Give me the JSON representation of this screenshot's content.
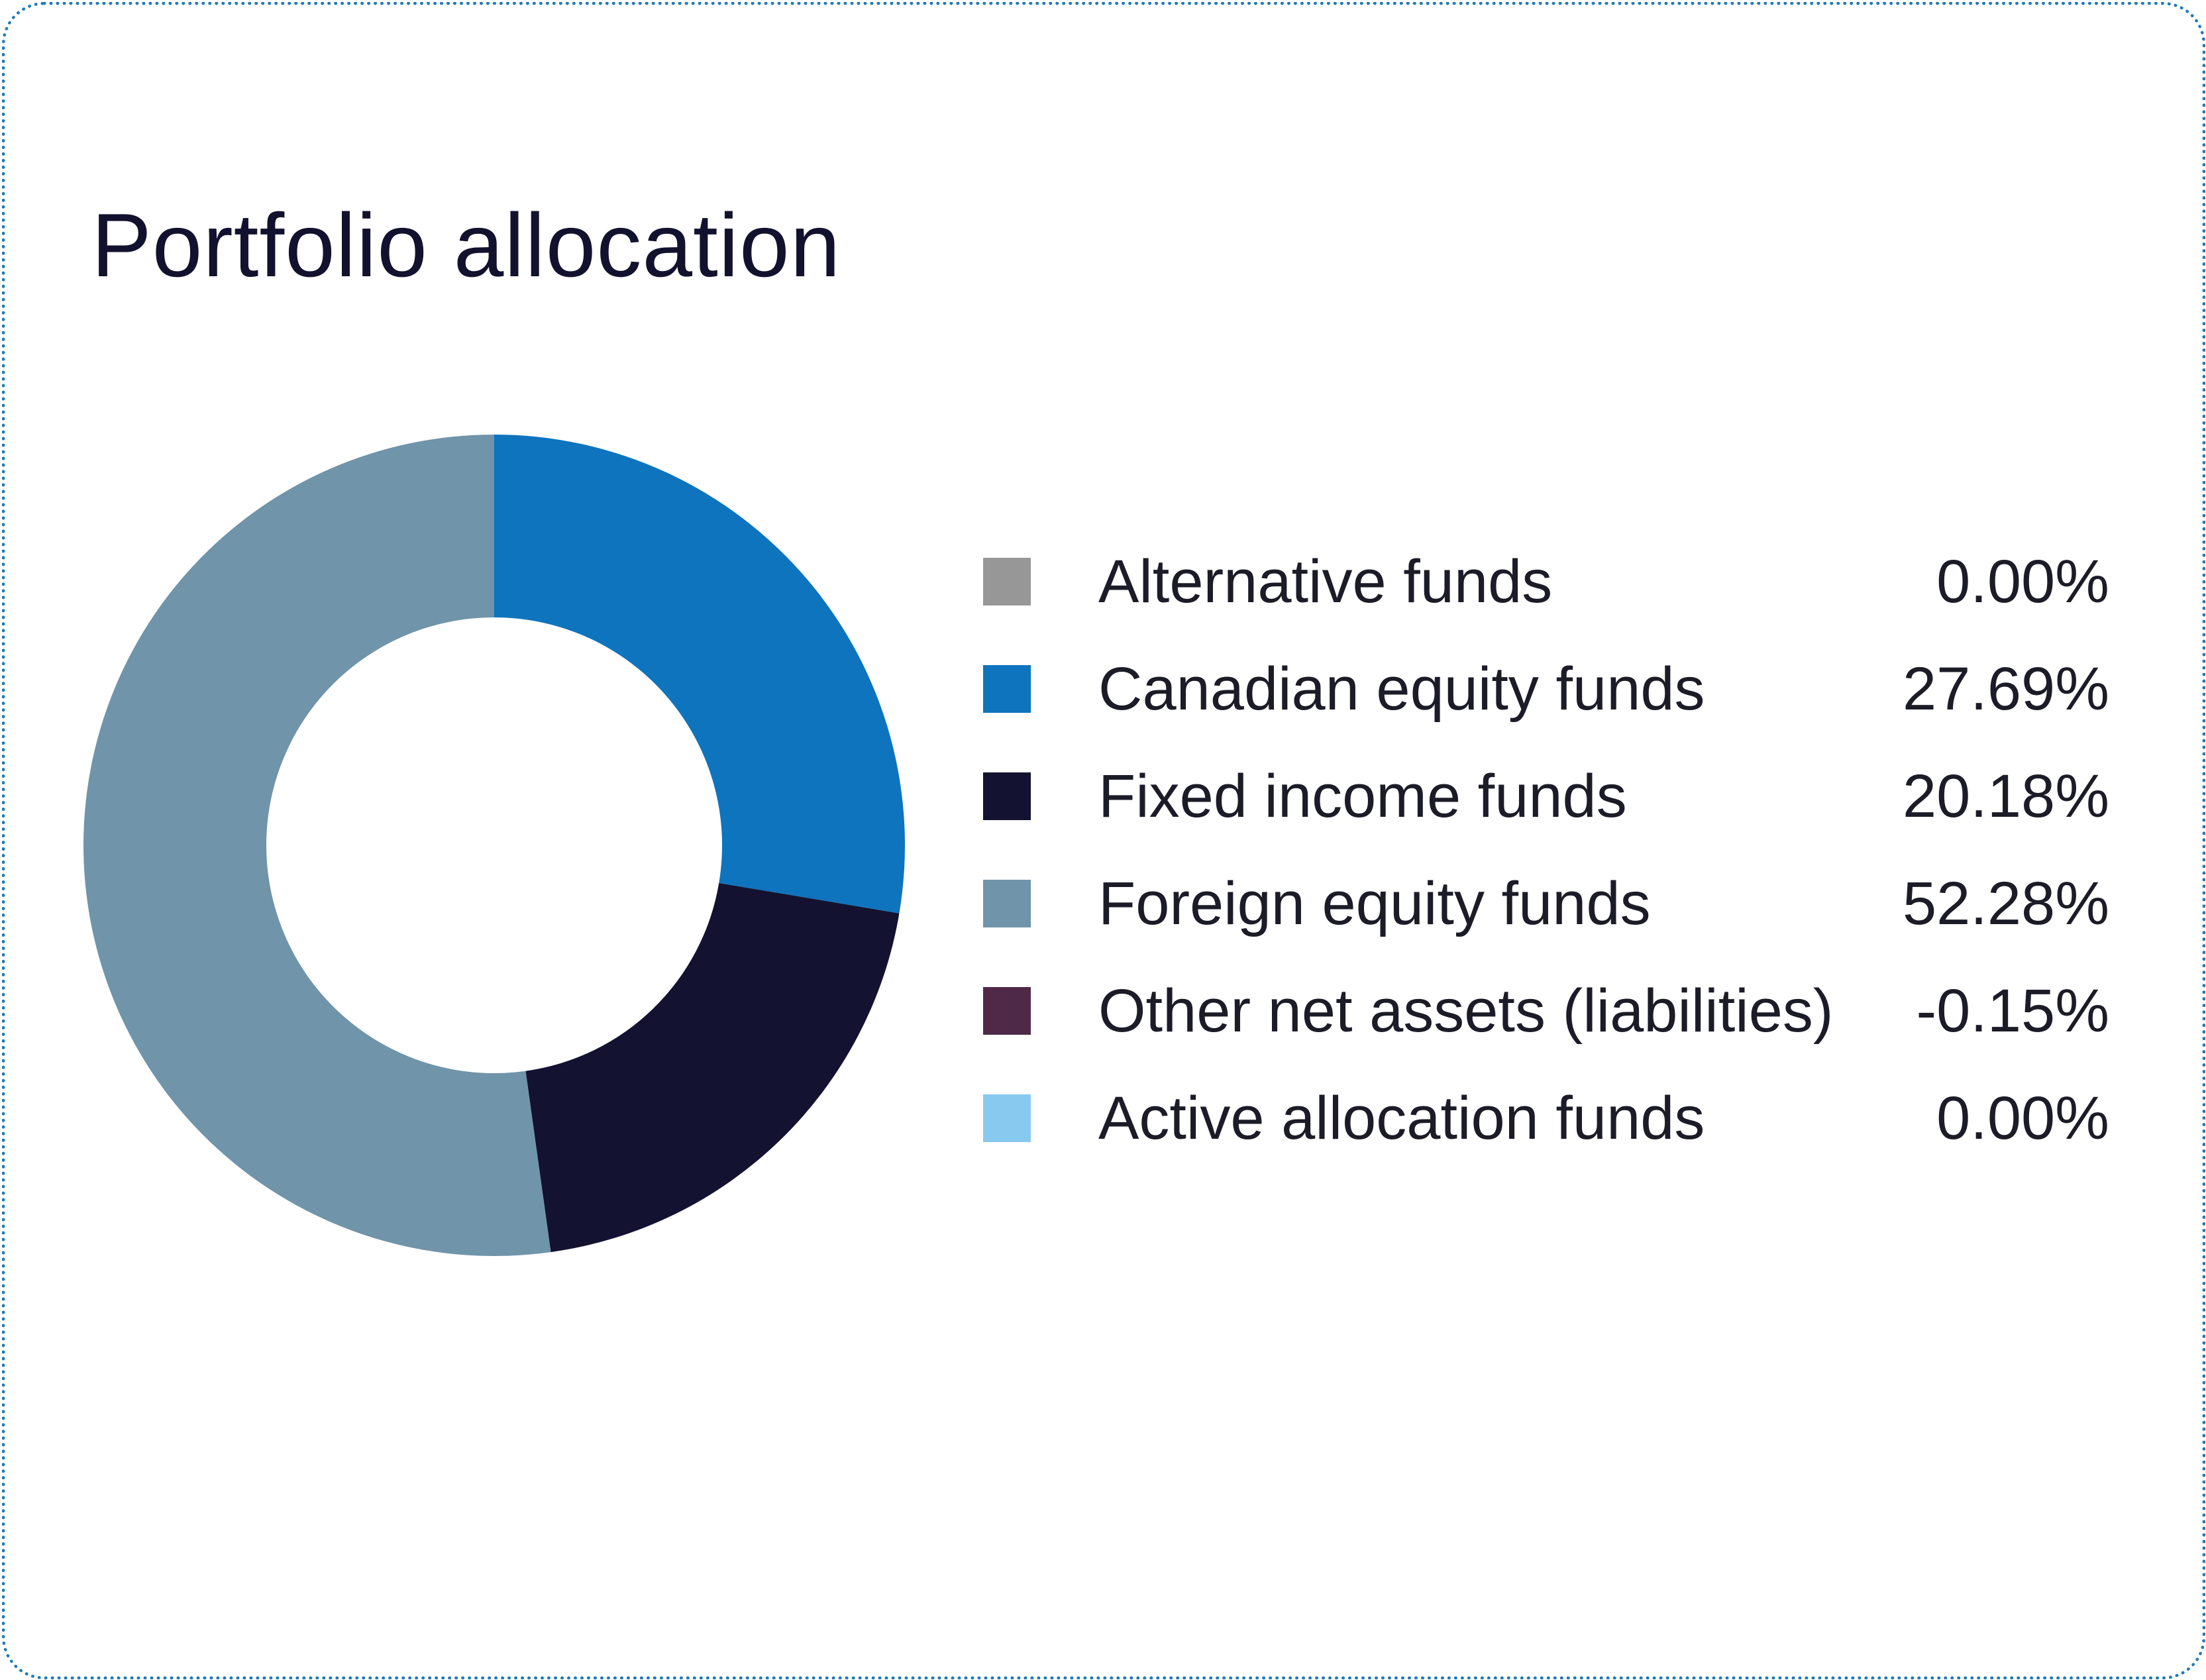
{
  "title": "Portfolio allocation",
  "chart_data": {
    "type": "pie",
    "style": "donut",
    "title": "Portfolio allocation",
    "start_angle": "top, clockwise",
    "legend_placement": "right",
    "slices": [
      {
        "label": "Alternative funds",
        "value": 0.0,
        "display": "0.00%",
        "color": "#979797"
      },
      {
        "label": "Canadian equity funds",
        "value": 27.69,
        "display": "27.69%",
        "color": "#0e74bd"
      },
      {
        "label": "Fixed income funds",
        "value": 20.18,
        "display": "20.18%",
        "color": "#131231"
      },
      {
        "label": "Foreign equity funds",
        "value": 52.28,
        "display": "52.28%",
        "color": "#7094a9"
      },
      {
        "label": "Other net assets (liabilities)",
        "value": -0.15,
        "display": "-0.15%",
        "color": "#4f2a48"
      },
      {
        "label": "Active allocation funds",
        "value": 0.0,
        "display": "0.00%",
        "color": "#88c9f0"
      }
    ]
  },
  "colors": {
    "border": "#1f7ab8",
    "title": "#12122e",
    "text": "#1c1c28"
  }
}
